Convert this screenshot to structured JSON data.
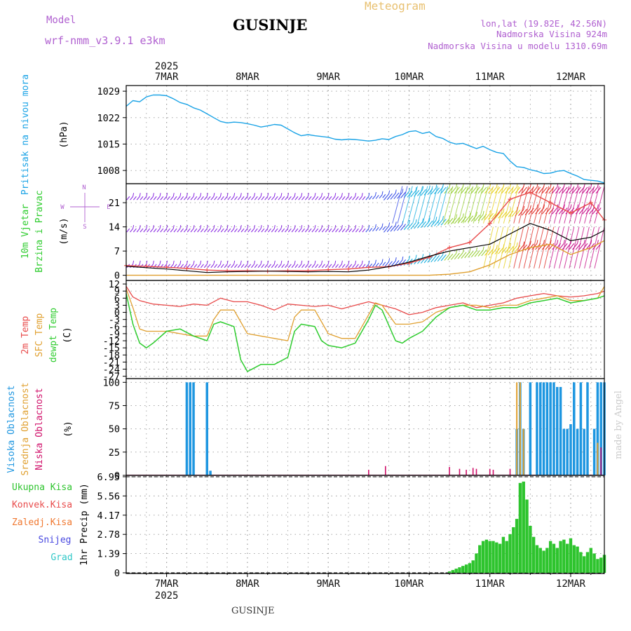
{
  "header": {
    "model_label": "Model",
    "model_name": "wrf-nmm_v3.9.1  e3km",
    "location": "GUSINJE",
    "chart_title": "Meteogram",
    "lonlat": "lon,lat (19.82E, 42.56N)",
    "altitude": "Nadmorska Visina 924m",
    "model_altitude": "Nadmorska Visina u modelu 1310.69m",
    "footer_location": "GUSINJE",
    "credit": "made by Angel"
  },
  "time_axis": {
    "year": "2025",
    "labels": [
      "7MAR",
      "8MAR",
      "9MAR",
      "10MAR",
      "11MAR",
      "12MAR"
    ],
    "label_hours": [
      0,
      24,
      48,
      72,
      96,
      120
    ],
    "range_hours": [
      -12,
      130
    ]
  },
  "colors": {
    "pressure": "#1aa3e6",
    "temp2m": "#e84a4a",
    "sfc": "#e0a030",
    "dewpt": "#2ecc2e",
    "high_cloud": "#1e96e0",
    "mid_cloud": "#e0a030",
    "low_cloud": "#d0106a",
    "precip": "#2ec42e",
    "wind_mean": "#8a2be2"
  },
  "chart_data": [
    {
      "type": "line",
      "ylabel_main": "Pritisak na nivou mora",
      "ylabel_unit": "(hPa)",
      "yticks": [
        1008,
        1015,
        1022,
        1029
      ],
      "ylim": [
        1004.5,
        1030.5
      ],
      "series": [
        {
          "x": [
            -12,
            -10,
            -8,
            -6,
            -4,
            -2,
            0,
            2,
            4,
            6,
            8,
            10,
            12,
            14,
            16,
            18,
            20,
            22,
            24,
            26,
            28,
            30,
            32,
            34,
            36,
            38,
            40,
            42,
            44,
            46,
            48,
            50,
            52,
            54,
            56,
            58,
            60,
            62,
            64,
            66,
            68,
            70,
            72,
            74,
            76,
            78,
            80,
            82,
            84,
            86,
            88,
            90,
            92,
            94,
            96,
            98,
            100,
            102,
            104,
            106,
            108,
            110,
            112,
            114,
            116,
            118,
            120,
            122,
            124,
            126,
            128,
            130
          ],
          "y": [
            1025,
            1026.5,
            1026.2,
            1027.5,
            1028,
            1028,
            1027.8,
            1027,
            1026,
            1025.5,
            1024.6,
            1024,
            1023,
            1022,
            1021,
            1020.6,
            1020.8,
            1020.7,
            1020.4,
            1020,
            1019.5,
            1019.8,
            1020.2,
            1020,
            1019,
            1018,
            1017.2,
            1017.5,
            1017.2,
            1017,
            1016.8,
            1016.3,
            1016.1,
            1016.3,
            1016.2,
            1016,
            1015.8,
            1016,
            1016.4,
            1016.2,
            1017,
            1017.5,
            1018.3,
            1018.5,
            1017.8,
            1018.2,
            1017,
            1016.5,
            1015.5,
            1015,
            1015.2,
            1014.5,
            1013.8,
            1014.4,
            1013.5,
            1012.8,
            1012.5,
            1010.5,
            1009,
            1008.8,
            1008.2,
            1007.8,
            1007.2,
            1007.3,
            1007.8,
            1008,
            1007.2,
            1006.5,
            1005.6,
            1005.4,
            1005.2,
            1004.7
          ]
        }
      ]
    },
    {
      "type": "line",
      "ylabel_main": "10m Vjetar",
      "ylabel_sub": "Brzina i Pravac",
      "ylabel_unit": "(m/s)",
      "compass": {
        "n": "N",
        "w": "W",
        "e": "E",
        "s": "S"
      },
      "yticks": [
        0,
        7,
        14,
        21
      ],
      "ylim": [
        -1.5,
        26.5
      ],
      "series": [
        {
          "x": [
            -12,
            -6,
            0,
            6,
            12,
            18,
            24,
            30,
            36,
            42,
            48,
            54,
            60,
            66,
            72,
            78,
            84,
            90,
            96,
            102,
            108,
            114,
            120,
            126,
            130
          ],
          "y": [
            2.6,
            2.2,
            1.8,
            1.3,
            0.8,
            1.0,
            1.1,
            1.2,
            1.1,
            1.0,
            1.1,
            1.0,
            1.5,
            2.5,
            3.8,
            5.5,
            7.0,
            8.0,
            9.0,
            12,
            15,
            13,
            10,
            11,
            13
          ]
        },
        {
          "x": [
            -12,
            -6,
            0,
            6,
            12,
            18,
            24,
            30,
            36,
            42,
            48,
            54,
            60,
            66,
            72,
            78,
            84,
            90,
            96,
            102,
            108,
            114,
            120,
            126,
            130
          ],
          "y": [
            2.8,
            2.6,
            2.3,
            2.0,
            1.5,
            1.3,
            1.3,
            1.2,
            1.3,
            1.3,
            1.6,
            1.8,
            2.3,
            2.5,
            3.5,
            5.2,
            8,
            9.5,
            15,
            22,
            24,
            21,
            18,
            21,
            16
          ]
        },
        {
          "x": [
            -12,
            -6,
            0,
            6,
            12,
            18,
            24,
            30,
            36,
            42,
            48,
            54,
            60,
            66,
            72,
            78,
            84,
            90,
            96,
            102,
            108,
            114,
            120,
            126,
            130
          ],
          "y": [
            0,
            0,
            0,
            0,
            0,
            0,
            0,
            0,
            0,
            0,
            0,
            0,
            0,
            0,
            0,
            0,
            0.3,
            1,
            3,
            6,
            8,
            9,
            6,
            8,
            10
          ]
        }
      ]
    },
    {
      "type": "line",
      "ylabel_main": "2m Temp",
      "ylabel_sfc": "SFC Temp",
      "ylabel_dew": "dewpt Temp",
      "ylabel_unit": "(C)",
      "yticks": [
        12,
        9,
        6,
        3,
        0,
        -3,
        -6,
        -9,
        -12,
        -15,
        -18,
        -21,
        -24,
        -27
      ],
      "ylim": [
        -28,
        13.5
      ],
      "series": [
        {
          "name": "2m Temp",
          "x": [
            -12,
            -10,
            -8,
            -4,
            0,
            4,
            8,
            12,
            16,
            20,
            24,
            28,
            32,
            36,
            40,
            44,
            48,
            52,
            56,
            60,
            64,
            68,
            72,
            76,
            80,
            84,
            88,
            92,
            96,
            100,
            104,
            108,
            112,
            116,
            120,
            124,
            128,
            130
          ],
          "y": [
            11,
            6.5,
            5,
            3.5,
            3,
            2.5,
            3.5,
            3,
            6,
            4.5,
            4.5,
            3,
            1,
            3.5,
            3,
            2.5,
            3,
            1.5,
            3,
            4.5,
            3,
            1.5,
            -1,
            0,
            2,
            3,
            4,
            2,
            3,
            4,
            6,
            7,
            8,
            7,
            6.5,
            7,
            8,
            9
          ]
        },
        {
          "name": "SFC Temp",
          "x": [
            -12,
            -10,
            -8,
            -6,
            -4,
            0,
            4,
            8,
            12,
            14,
            16,
            20,
            22,
            24,
            28,
            32,
            36,
            38,
            40,
            44,
            46,
            48,
            52,
            56,
            60,
            62,
            64,
            68,
            70,
            72,
            76,
            80,
            84,
            88,
            92,
            96,
            100,
            104,
            108,
            112,
            116,
            120,
            124,
            128,
            130
          ],
          "y": [
            10,
            2,
            -7,
            -8,
            -8,
            -8,
            -9,
            -10,
            -10,
            -3,
            1,
            1,
            -4,
            -9,
            -10,
            -11,
            -12,
            -2,
            1,
            1,
            -4,
            -9,
            -11,
            -11,
            -1,
            4,
            3,
            -5,
            -5,
            -5,
            -4,
            0,
            2,
            3,
            3,
            2,
            3,
            3,
            5,
            6,
            7,
            5,
            5,
            6,
            11
          ]
        },
        {
          "name": "dewpt Temp",
          "x": [
            -12,
            -10,
            -8,
            -6,
            -4,
            0,
            4,
            8,
            12,
            14,
            16,
            20,
            22,
            24,
            28,
            32,
            36,
            38,
            40,
            44,
            46,
            48,
            52,
            56,
            60,
            62,
            64,
            68,
            70,
            72,
            76,
            80,
            84,
            88,
            92,
            96,
            100,
            104,
            108,
            112,
            116,
            120,
            124,
            128,
            130
          ],
          "y": [
            8,
            -5,
            -13,
            -15,
            -13,
            -8,
            -7,
            -10,
            -12,
            -5,
            -4,
            -6,
            -20,
            -25,
            -22,
            -22,
            -19,
            -8,
            -5,
            -6,
            -12,
            -14,
            -15,
            -13,
            -3,
            3,
            1,
            -12,
            -13,
            -11,
            -8,
            -2,
            2,
            3,
            1,
            1,
            2,
            2,
            4,
            5,
            6,
            4,
            5,
            6,
            7
          ]
        }
      ]
    },
    {
      "type": "bar",
      "ylabel_high": "Visoka Oblacnost",
      "ylabel_mid": "Srednja Oblacnost",
      "ylabel_low": "Niska Oblacnost",
      "ylabel_unit": "(%)",
      "yticks": [
        0,
        25,
        50,
        75,
        100
      ],
      "ylim": [
        0,
        104
      ],
      "series": [
        {
          "name": "Visoka Oblacnost",
          "x": [
            6,
            7,
            8,
            12,
            13,
            104,
            105,
            106,
            108,
            110,
            111,
            112,
            113,
            114,
            115,
            116,
            117,
            118,
            119,
            120,
            121,
            122,
            123,
            124,
            125,
            127,
            128,
            129,
            130
          ],
          "values": [
            100,
            100,
            100,
            100,
            5,
            50,
            100,
            50,
            100,
            100,
            100,
            100,
            100,
            100,
            100,
            95,
            95,
            50,
            50,
            55,
            100,
            50,
            100,
            50,
            100,
            50,
            100,
            100,
            100
          ]
        },
        {
          "name": "Srednja Oblacnost",
          "x": [
            104,
            105,
            106,
            128
          ],
          "values": [
            100,
            100,
            50,
            35
          ]
        },
        {
          "name": "Niska Oblacnost",
          "x": [
            60,
            65,
            84,
            87,
            89,
            91,
            92,
            96,
            97,
            102,
            129
          ],
          "values": [
            6,
            10,
            9,
            7,
            6,
            8,
            7,
            7,
            6,
            7,
            30
          ]
        }
      ]
    },
    {
      "type": "bar",
      "ylabel_total": "Ukupna Kisa",
      "ylabel_conv": "Konvek.Kisa",
      "ylabel_frz": "Zaledj.Kisa",
      "ylabel_snow": "Snijeg",
      "ylabel_grad": "Grad",
      "ylabel_unit": "1hr Precip (mm)",
      "yticks": [
        "0",
        "1.39",
        "2.78",
        "4.17",
        "5.56",
        "6.95"
      ],
      "ylim": [
        0,
        6.95
      ],
      "series": [
        {
          "name": "Ukupna Kisa",
          "x": [
            84,
            85,
            86,
            87,
            88,
            89,
            90,
            91,
            92,
            93,
            94,
            95,
            96,
            97,
            98,
            99,
            100,
            101,
            102,
            103,
            104,
            105,
            106,
            107,
            108,
            109,
            110,
            111,
            112,
            113,
            114,
            115,
            116,
            117,
            118,
            119,
            120,
            121,
            122,
            123,
            124,
            125,
            126,
            127,
            128,
            129,
            130
          ],
          "values": [
            0.1,
            0.2,
            0.3,
            0.4,
            0.5,
            0.6,
            0.7,
            0.9,
            1.4,
            2.0,
            2.3,
            2.4,
            2.3,
            2.3,
            2.2,
            2.1,
            2.6,
            2.3,
            2.8,
            3.3,
            3.9,
            6.5,
            6.6,
            5.3,
            3.4,
            2.6,
            2.0,
            1.8,
            1.6,
            1.8,
            2.3,
            2.1,
            1.8,
            2.3,
            2.4,
            2.1,
            2.5,
            2.0,
            1.9,
            1.5,
            1.2,
            1.5,
            1.8,
            1.4,
            1.0,
            1.1,
            1.3
          ]
        }
      ]
    }
  ]
}
